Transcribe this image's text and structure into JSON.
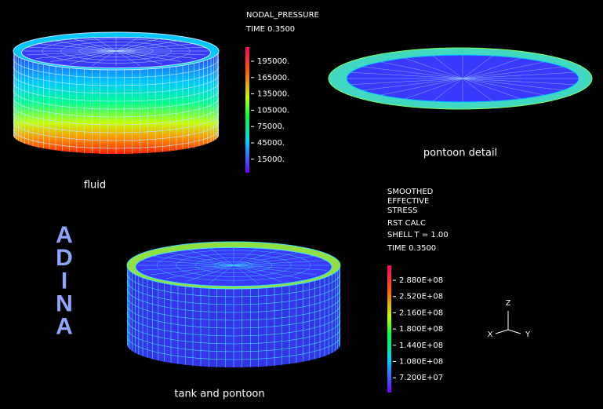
{
  "legend_pressure": {
    "title": [
      "NODAL_PRESSURE",
      "TIME 0.3500"
    ],
    "ticks": [
      "195000.",
      "165000.",
      "135000.",
      "105000.",
      "75000.",
      "45000.",
      "15000."
    ]
  },
  "legend_stress": {
    "title": [
      "SMOOTHED",
      "EFFECTIVE",
      "STRESS",
      "RST CALC",
      "SHELL T = 1.00",
      "TIME 0.3500"
    ],
    "ticks": [
      "2.880E+08",
      "2.520E+08",
      "2.160E+08",
      "1.800E+08",
      "1.440E+08",
      "1.080E+08",
      "7.200E+07"
    ]
  },
  "captions": {
    "fluid": "fluid",
    "pontoon": "pontoon detail",
    "tank": "tank and pontoon"
  },
  "logo": [
    "A",
    "D",
    "I",
    "N",
    "A"
  ],
  "triad": {
    "z": "Z",
    "x": "X",
    "y": "Y"
  }
}
